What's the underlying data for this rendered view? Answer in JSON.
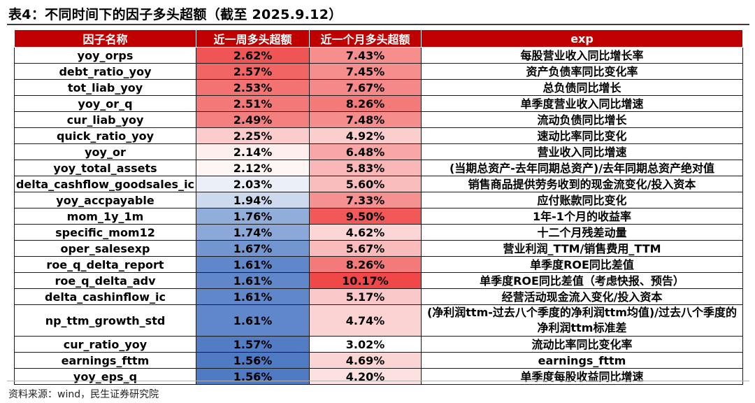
{
  "title": "表4：不同时间下的因子多头超额（截至 2025.9.12）",
  "headers": [
    "因子名称",
    "近一周多头超额",
    "近一个月多头超额",
    "exp"
  ],
  "colors": {
    "header_bg": "#c00000",
    "week_scale": [
      "#4f7bc4",
      "#ffffff",
      "#f05555"
    ],
    "month_scale": [
      "#ffffff",
      "#f04848"
    ]
  },
  "rows": [
    {
      "name": "yoy_orps",
      "week": "2.62%",
      "month": "7.43%",
      "exp": "每股营业收入同比增长率"
    },
    {
      "name": "debt_ratio_yoy",
      "week": "2.57%",
      "month": "7.45%",
      "exp": "资产负债率同比变化率"
    },
    {
      "name": "tot_liab_yoy",
      "week": "2.53%",
      "month": "7.67%",
      "exp": "总负债同比增长"
    },
    {
      "name": "yoy_or_q",
      "week": "2.51%",
      "month": "8.26%",
      "exp": "单季度营业收入同比增速"
    },
    {
      "name": "cur_liab_yoy",
      "week": "2.49%",
      "month": "7.48%",
      "exp": "流动负债同比增长"
    },
    {
      "name": "quick_ratio_yoy",
      "week": "2.25%",
      "month": "4.92%",
      "exp": "速动比率同比变化"
    },
    {
      "name": "yoy_or",
      "week": "2.14%",
      "month": "6.48%",
      "exp": "营业收入同比增速"
    },
    {
      "name": "yoy_total_assets",
      "week": "2.12%",
      "month": "5.83%",
      "exp": "(当期总资产-去年同期总资产)/去年同期总资产绝对值"
    },
    {
      "name": "delta_cashflow_goodsales_ic",
      "week": "2.03%",
      "month": "5.60%",
      "exp": "销售商品提供劳务收到的现金流变化/投入资本"
    },
    {
      "name": "yoy_accpayable",
      "week": "1.94%",
      "month": "7.33%",
      "exp": "应付账款同比变化"
    },
    {
      "name": "mom_1y_1m",
      "week": "1.76%",
      "month": "9.50%",
      "exp": "1年-1个月的收益率"
    },
    {
      "name": "specific_mom12",
      "week": "1.74%",
      "month": "4.62%",
      "exp": "十二个月残差动量"
    },
    {
      "name": "oper_salesexp",
      "week": "1.67%",
      "month": "5.67%",
      "exp": "营业利润_TTM/销售费用_TTM"
    },
    {
      "name": "roe_q_delta_report",
      "week": "1.61%",
      "month": "8.26%",
      "exp": "单季度ROE同比差值"
    },
    {
      "name": "roe_q_delta_adv",
      "week": "1.61%",
      "month": "10.17%",
      "exp": "单季度ROE同比差值（考虑快报、预告）"
    },
    {
      "name": "delta_cashinflow_ic",
      "week": "1.61%",
      "month": "5.17%",
      "exp": "经营活动现金流入变化/投入资本"
    },
    {
      "name": "np_ttm_growth_std",
      "week": "1.61%",
      "month": "4.74%",
      "exp": "(净利润ttm-过去八个季度的净利润ttm均值)/过去八个季度的净利润ttm标准差"
    },
    {
      "name": "cur_ratio_yoy",
      "week": "1.57%",
      "month": "3.02%",
      "exp": "流动比率同比变化率"
    },
    {
      "name": "earnings_fttm",
      "week": "1.56%",
      "month": "4.69%",
      "exp": "earnings_fttm"
    },
    {
      "name": "yoy_eps_q",
      "week": "1.56%",
      "month": "4.20%",
      "exp": "单季度每股收益同比增速"
    }
  ],
  "source": "资料来源：wind，民生证券研究院"
}
